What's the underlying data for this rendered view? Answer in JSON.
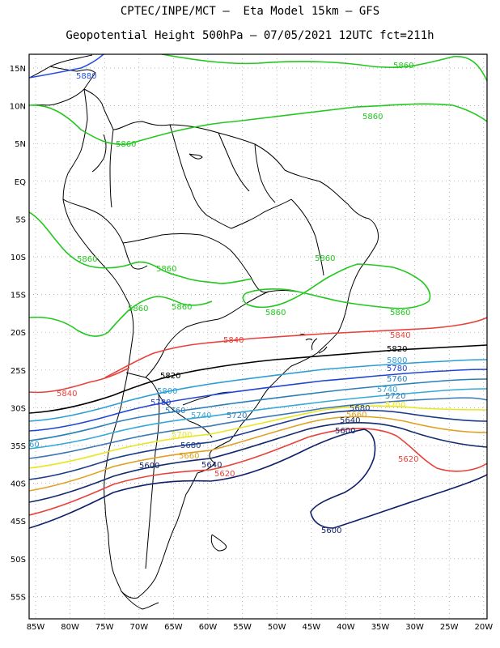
{
  "header": {
    "line1": "CPTEC/INPE/MCT –  Eta Model 15km – GFS",
    "line2": "Geopotential Height 500hPa – 07/05/2021 12UTC fct=211h"
  },
  "axes": {
    "lat_labels": [
      "15N",
      "10N",
      "5N",
      "EQ",
      "5S",
      "10S",
      "15S",
      "20S",
      "25S",
      "30S",
      "35S",
      "40S",
      "45S",
      "50S",
      "55S"
    ],
    "lon_labels": [
      "85W",
      "80W",
      "75W",
      "70W",
      "65W",
      "60W",
      "55W",
      "50W",
      "45W",
      "40W",
      "35W",
      "30W",
      "25W",
      "20W"
    ]
  },
  "colors": {
    "c5880": "#2a4fe0",
    "c5860": "#22c81e",
    "c5840": "#e8413a",
    "c5820": "#000000",
    "c5800": "#2c9ed6",
    "c5780": "#1f45d6",
    "c5760": "#2a7fb8",
    "c5740": "#36a8d8",
    "c5720": "#3c78b4",
    "c5700": "#e8e620",
    "c5680": "#1a3a8a",
    "c5660": "#e0a020",
    "c5640": "#142a6e",
    "c5620": "#e8413a",
    "c5600": "#0f1f6a"
  },
  "contour_labels": [
    {
      "text": "5880",
      "key": "c5880"
    },
    {
      "text": "5860",
      "key": "c5860"
    },
    {
      "text": "5860",
      "key": "c5860"
    },
    {
      "text": "5860",
      "key": "c5860"
    },
    {
      "text": "5860",
      "key": "c5860"
    },
    {
      "text": "5860",
      "key": "c5860"
    },
    {
      "text": "5860",
      "key": "c5860"
    },
    {
      "text": "5860",
      "key": "c5860"
    },
    {
      "text": "5860",
      "key": "c5860"
    },
    {
      "text": "5860",
      "key": "c5860"
    },
    {
      "text": "5860",
      "key": "c5860"
    },
    {
      "text": "5840",
      "key": "c5840"
    },
    {
      "text": "5840",
      "key": "c5840"
    },
    {
      "text": "5840",
      "key": "c5840"
    },
    {
      "text": "5820",
      "key": "c5820"
    },
    {
      "text": "5820",
      "key": "c5820"
    },
    {
      "text": "5800",
      "key": "c5800"
    },
    {
      "text": "5800",
      "key": "c5800"
    },
    {
      "text": "5780",
      "key": "c5780"
    },
    {
      "text": "5780",
      "key": "c5780"
    },
    {
      "text": "5760",
      "key": "c5760"
    },
    {
      "text": "5760",
      "key": "c5760"
    },
    {
      "text": "5740",
      "key": "c5740"
    },
    {
      "text": "5740",
      "key": "c5740"
    },
    {
      "text": "5720",
      "key": "c5720"
    },
    {
      "text": "5720",
      "key": "c5720"
    },
    {
      "text": "5700",
      "key": "c5700"
    },
    {
      "text": "5700",
      "key": "c5700"
    },
    {
      "text": "5680",
      "key": "c5680"
    },
    {
      "text": "5680",
      "key": "c5680"
    },
    {
      "text": "5660",
      "key": "c5660"
    },
    {
      "text": "5660",
      "key": "c5660"
    },
    {
      "text": "5640",
      "key": "c5640"
    },
    {
      "text": "5640",
      "key": "c5640"
    },
    {
      "text": "5620",
      "key": "c5620"
    },
    {
      "text": "5620",
      "key": "c5620"
    },
    {
      "text": "5600",
      "key": "c5600"
    },
    {
      "text": "5600",
      "key": "c5600"
    },
    {
      "text": "5600",
      "key": "c5600"
    },
    {
      "text": "60",
      "key": "c5800"
    }
  ]
}
